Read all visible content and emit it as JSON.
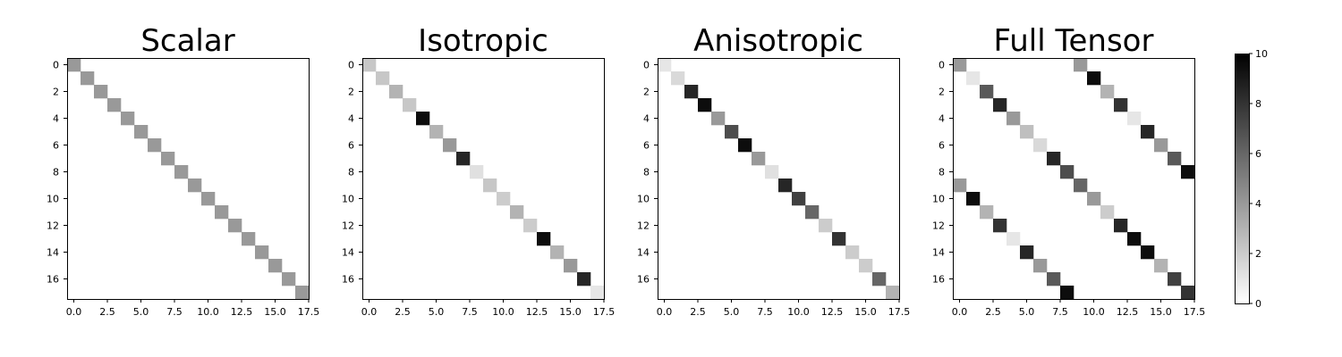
{
  "chart_data": [
    {
      "type": "heatmap",
      "title": "Scalar",
      "size": 18,
      "cells": [
        {
          "i": 0,
          "j": 0,
          "v": 4.0
        },
        {
          "i": 1,
          "j": 1,
          "v": 4.0
        },
        {
          "i": 2,
          "j": 2,
          "v": 4.0
        },
        {
          "i": 3,
          "j": 3,
          "v": 4.0
        },
        {
          "i": 4,
          "j": 4,
          "v": 4.0
        },
        {
          "i": 5,
          "j": 5,
          "v": 4.0
        },
        {
          "i": 6,
          "j": 6,
          "v": 4.0
        },
        {
          "i": 7,
          "j": 7,
          "v": 4.0
        },
        {
          "i": 8,
          "j": 8,
          "v": 4.0
        },
        {
          "i": 9,
          "j": 9,
          "v": 4.0
        },
        {
          "i": 10,
          "j": 10,
          "v": 4.0
        },
        {
          "i": 11,
          "j": 11,
          "v": 4.0
        },
        {
          "i": 12,
          "j": 12,
          "v": 4.0
        },
        {
          "i": 13,
          "j": 13,
          "v": 4.0
        },
        {
          "i": 14,
          "j": 14,
          "v": 4.0
        },
        {
          "i": 15,
          "j": 15,
          "v": 4.0
        },
        {
          "i": 16,
          "j": 16,
          "v": 4.0
        },
        {
          "i": 17,
          "j": 17,
          "v": 4.0
        }
      ]
    },
    {
      "type": "heatmap",
      "title": "Isotropic",
      "size": 18,
      "cells": [
        {
          "i": 0,
          "j": 0,
          "v": 2.2
        },
        {
          "i": 1,
          "j": 1,
          "v": 2.2
        },
        {
          "i": 2,
          "j": 2,
          "v": 3.0
        },
        {
          "i": 3,
          "j": 3,
          "v": 2.2
        },
        {
          "i": 4,
          "j": 4,
          "v": 9.5
        },
        {
          "i": 5,
          "j": 5,
          "v": 3.0
        },
        {
          "i": 6,
          "j": 6,
          "v": 4.0
        },
        {
          "i": 7,
          "j": 7,
          "v": 8.5
        },
        {
          "i": 8,
          "j": 8,
          "v": 1.2
        },
        {
          "i": 9,
          "j": 9,
          "v": 2.2
        },
        {
          "i": 10,
          "j": 10,
          "v": 2.0
        },
        {
          "i": 11,
          "j": 11,
          "v": 3.0
        },
        {
          "i": 12,
          "j": 12,
          "v": 2.0
        },
        {
          "i": 13,
          "j": 13,
          "v": 9.5
        },
        {
          "i": 14,
          "j": 14,
          "v": 3.0
        },
        {
          "i": 15,
          "j": 15,
          "v": 4.0
        },
        {
          "i": 16,
          "j": 16,
          "v": 8.5
        },
        {
          "i": 17,
          "j": 17,
          "v": 1.0
        }
      ]
    },
    {
      "type": "heatmap",
      "title": "Anisotropic",
      "size": 18,
      "cells": [
        {
          "i": 0,
          "j": 0,
          "v": 1.0
        },
        {
          "i": 1,
          "j": 1,
          "v": 1.5
        },
        {
          "i": 2,
          "j": 2,
          "v": 8.5
        },
        {
          "i": 3,
          "j": 3,
          "v": 9.5
        },
        {
          "i": 4,
          "j": 4,
          "v": 4.0
        },
        {
          "i": 5,
          "j": 5,
          "v": 7.0
        },
        {
          "i": 6,
          "j": 6,
          "v": 9.5
        },
        {
          "i": 7,
          "j": 7,
          "v": 4.0
        },
        {
          "i": 8,
          "j": 8,
          "v": 1.2
        },
        {
          "i": 9,
          "j": 9,
          "v": 8.5
        },
        {
          "i": 10,
          "j": 10,
          "v": 7.5
        },
        {
          "i": 11,
          "j": 11,
          "v": 6.0
        },
        {
          "i": 12,
          "j": 12,
          "v": 2.0
        },
        {
          "i": 13,
          "j": 13,
          "v": 8.0
        },
        {
          "i": 14,
          "j": 14,
          "v": 2.0
        },
        {
          "i": 15,
          "j": 15,
          "v": 2.0
        },
        {
          "i": 16,
          "j": 16,
          "v": 6.0
        },
        {
          "i": 17,
          "j": 17,
          "v": 3.0
        }
      ]
    },
    {
      "type": "heatmap",
      "title": "Full Tensor",
      "size": 18,
      "cells": [
        {
          "i": 0,
          "j": 0,
          "v": 4.0
        },
        {
          "i": 0,
          "j": 9,
          "v": 4.0
        },
        {
          "i": 1,
          "j": 1,
          "v": 1.0
        },
        {
          "i": 1,
          "j": 10,
          "v": 9.5
        },
        {
          "i": 2,
          "j": 2,
          "v": 6.5
        },
        {
          "i": 2,
          "j": 11,
          "v": 3.0
        },
        {
          "i": 3,
          "j": 3,
          "v": 8.5
        },
        {
          "i": 3,
          "j": 12,
          "v": 8.0
        },
        {
          "i": 4,
          "j": 4,
          "v": 4.0
        },
        {
          "i": 4,
          "j": 13,
          "v": 1.0
        },
        {
          "i": 5,
          "j": 5,
          "v": 2.5
        },
        {
          "i": 5,
          "j": 14,
          "v": 8.5
        },
        {
          "i": 6,
          "j": 6,
          "v": 1.5
        },
        {
          "i": 6,
          "j": 15,
          "v": 4.0
        },
        {
          "i": 7,
          "j": 7,
          "v": 8.5
        },
        {
          "i": 7,
          "j": 16,
          "v": 6.5
        },
        {
          "i": 8,
          "j": 8,
          "v": 7.0
        },
        {
          "i": 8,
          "j": 17,
          "v": 9.5
        },
        {
          "i": 9,
          "j": 0,
          "v": 4.0
        },
        {
          "i": 9,
          "j": 9,
          "v": 6.0
        },
        {
          "i": 10,
          "j": 1,
          "v": 9.5
        },
        {
          "i": 10,
          "j": 10,
          "v": 4.0
        },
        {
          "i": 11,
          "j": 2,
          "v": 3.0
        },
        {
          "i": 11,
          "j": 11,
          "v": 2.0
        },
        {
          "i": 12,
          "j": 3,
          "v": 8.0
        },
        {
          "i": 12,
          "j": 12,
          "v": 8.5
        },
        {
          "i": 13,
          "j": 4,
          "v": 1.0
        },
        {
          "i": 13,
          "j": 13,
          "v": 9.5
        },
        {
          "i": 14,
          "j": 5,
          "v": 8.5
        },
        {
          "i": 14,
          "j": 14,
          "v": 9.5
        },
        {
          "i": 15,
          "j": 6,
          "v": 4.0
        },
        {
          "i": 15,
          "j": 15,
          "v": 3.0
        },
        {
          "i": 16,
          "j": 7,
          "v": 6.5
        },
        {
          "i": 16,
          "j": 16,
          "v": 7.5
        },
        {
          "i": 17,
          "j": 8,
          "v": 9.5
        },
        {
          "i": 17,
          "j": 17,
          "v": 8.0
        }
      ]
    }
  ],
  "axes": {
    "x_ticks": [
      "0.0",
      "2.5",
      "5.0",
      "7.5",
      "10.0",
      "12.5",
      "15.0",
      "17.5"
    ],
    "y_ticks": [
      "0",
      "2",
      "4",
      "6",
      "8",
      "10",
      "12",
      "14",
      "16"
    ]
  },
  "colorbar": {
    "min": 0,
    "max": 10,
    "colormap": "Greys",
    "ticks": [
      "0",
      "2",
      "4",
      "6",
      "8",
      "10"
    ]
  }
}
